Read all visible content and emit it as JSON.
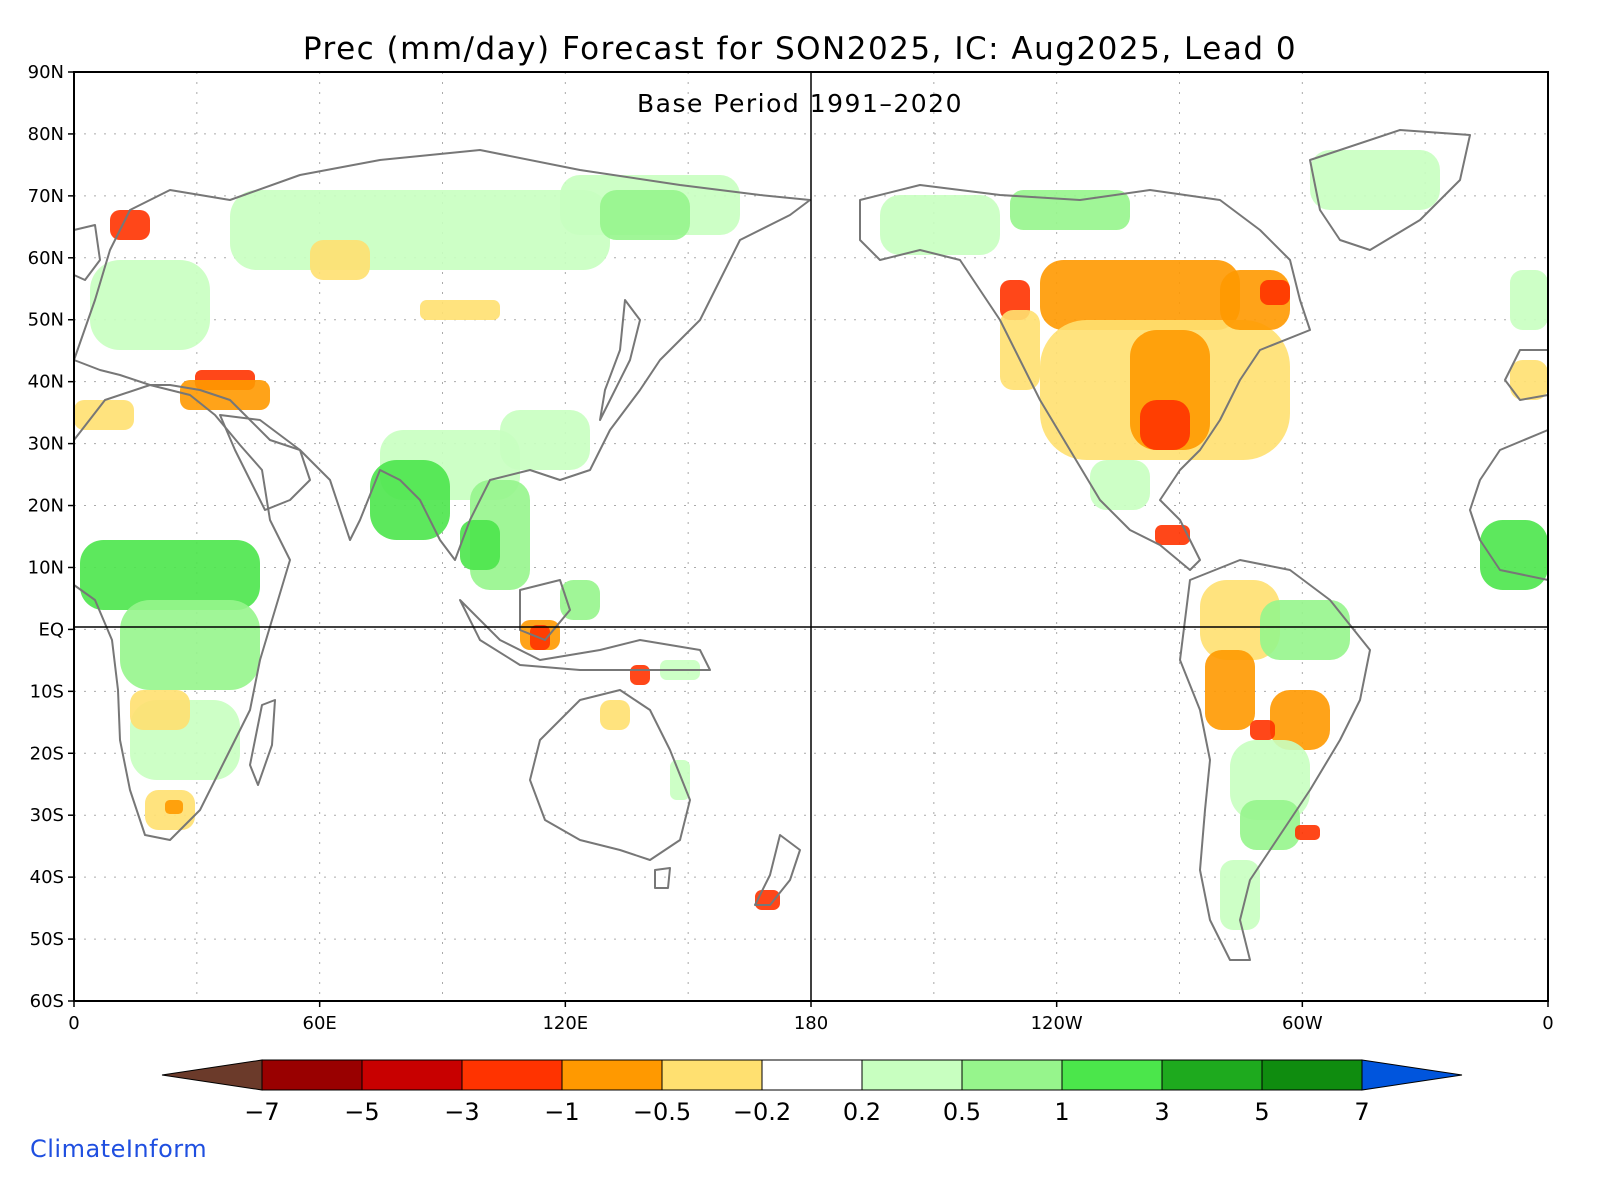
{
  "title": "Prec (mm/day) Forecast for SON2025, IC: Aug2025, Lead 0",
  "subtitle": "Base Period 1991–2020",
  "credit": "ClimateInform",
  "axes": {
    "lat_labels": [
      "90N",
      "80N",
      "70N",
      "60N",
      "50N",
      "40N",
      "30N",
      "20N",
      "10N",
      "EQ",
      "10S",
      "20S",
      "30S",
      "40S",
      "50S",
      "60S"
    ],
    "lon_labels": [
      "0",
      "60E",
      "120E",
      "180",
      "120W",
      "60W",
      "0"
    ]
  },
  "colorbar": {
    "labels": [
      "−7",
      "−5",
      "−3",
      "−1",
      "−0.5",
      "−0.2",
      "0.2",
      "0.5",
      "1",
      "3",
      "5",
      "7"
    ],
    "colors": [
      "#6b3a2a",
      "#990000",
      "#c80000",
      "#ff3300",
      "#ff9900",
      "#ffe070",
      "#ffffff",
      "#c8ffc0",
      "#96f58c",
      "#4be64b",
      "#1eaa1e",
      "#0f8c0f",
      "#0055dd"
    ]
  },
  "map": {
    "projection": "equirectangular",
    "lon_range": [
      0,
      360
    ],
    "lat_range": [
      -60,
      90
    ],
    "land_color": "#ffffff",
    "coast_color": "#777777",
    "grid": "dotted"
  }
}
